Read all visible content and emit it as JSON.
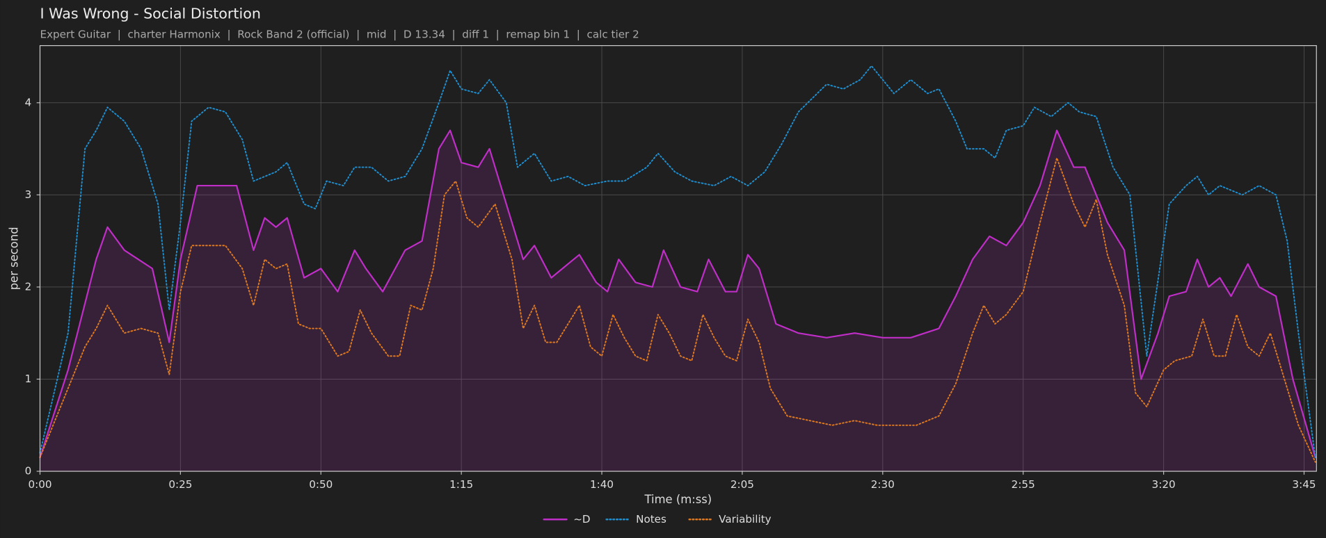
{
  "chart_data": {
    "type": "line",
    "title": "I Was Wrong - Social Distortion",
    "subtitle": "Expert Guitar  |  charter Harmonix  |  Rock Band 2 (official)  |  mid  |  D 13.34  |  diff 1  |  remap bin 1  |  calc tier 2",
    "xlabel": "Time (m:ss)",
    "ylabel": "per second",
    "xlim": [
      0,
      227.2
    ],
    "ylim": [
      0,
      4.62
    ],
    "xticks": [
      {
        "value": 0,
        "label": "0:00"
      },
      {
        "value": 25,
        "label": "0:25"
      },
      {
        "value": 50,
        "label": "0:50"
      },
      {
        "value": 75,
        "label": "1:15"
      },
      {
        "value": 100,
        "label": "1:40"
      },
      {
        "value": 125,
        "label": "2:05"
      },
      {
        "value": 150,
        "label": "2:30"
      },
      {
        "value": 175,
        "label": "2:55"
      },
      {
        "value": 200,
        "label": "3:20"
      },
      {
        "value": 225,
        "label": "3:45"
      }
    ],
    "yticks": [
      0,
      1,
      2,
      3,
      4
    ],
    "grid": true,
    "legend": "bottom",
    "series": [
      {
        "name": "~D",
        "color": "#c02ec8",
        "linestyle": "solid",
        "fill": true,
        "x": [
          0,
          5,
          10,
          12,
          15,
          20,
          23,
          25,
          28,
          35,
          38,
          40,
          42,
          44,
          47,
          50,
          53,
          56,
          58,
          61,
          65,
          68,
          71,
          73,
          75,
          78,
          80,
          84,
          86,
          88,
          91,
          94,
          96,
          99,
          101,
          103,
          106,
          109,
          111,
          114,
          117,
          119,
          122,
          124,
          126,
          128,
          131,
          135,
          140,
          145,
          150,
          155,
          160,
          163,
          166,
          169,
          172,
          175,
          178,
          181,
          184,
          186,
          190,
          193,
          196,
          199,
          201,
          204,
          206,
          208,
          210,
          212,
          215,
          217,
          220,
          223,
          227
        ],
        "values": [
          0.15,
          1.1,
          2.3,
          2.65,
          2.4,
          2.2,
          1.4,
          2.3,
          3.1,
          3.1,
          2.4,
          2.75,
          2.65,
          2.75,
          2.1,
          2.2,
          1.95,
          2.4,
          2.2,
          1.95,
          2.4,
          2.5,
          3.5,
          3.7,
          3.35,
          3.3,
          3.5,
          2.7,
          2.3,
          2.45,
          2.1,
          2.25,
          2.35,
          2.05,
          1.95,
          2.3,
          2.05,
          2.0,
          2.4,
          2.0,
          1.95,
          2.3,
          1.95,
          1.95,
          2.35,
          2.2,
          1.6,
          1.5,
          1.45,
          1.5,
          1.45,
          1.45,
          1.55,
          1.9,
          2.3,
          2.55,
          2.45,
          2.7,
          3.1,
          3.7,
          3.3,
          3.3,
          2.7,
          2.4,
          1.0,
          1.5,
          1.9,
          1.95,
          2.3,
          2.0,
          2.1,
          1.9,
          2.25,
          2.0,
          1.9,
          1.0,
          0.15
        ]
      },
      {
        "name": "Notes",
        "color": "#1f8fd0",
        "linestyle": "dotted",
        "fill": false,
        "x": [
          0,
          5,
          8,
          10,
          12,
          15,
          18,
          21,
          23,
          25,
          27,
          30,
          33,
          36,
          38,
          42,
          44,
          47,
          49,
          51,
          54,
          56,
          59,
          62,
          65,
          68,
          71,
          73,
          75,
          78,
          80,
          83,
          85,
          88,
          91,
          94,
          97,
          101,
          104,
          108,
          110,
          113,
          116,
          120,
          123,
          126,
          129,
          132,
          135,
          140,
          143,
          146,
          148,
          152,
          155,
          158,
          160,
          163,
          165,
          168,
          170,
          172,
          175,
          177,
          180,
          183,
          185,
          188,
          191,
          194,
          197,
          201,
          204,
          206,
          208,
          210,
          214,
          217,
          220,
          222,
          224,
          227
        ],
        "values": [
          0.2,
          1.5,
          3.5,
          3.7,
          3.95,
          3.8,
          3.5,
          2.9,
          1.75,
          2.7,
          3.8,
          3.95,
          3.9,
          3.6,
          3.15,
          3.25,
          3.35,
          2.9,
          2.85,
          3.15,
          3.1,
          3.3,
          3.3,
          3.15,
          3.2,
          3.5,
          4.0,
          4.35,
          4.15,
          4.1,
          4.25,
          4.0,
          3.3,
          3.45,
          3.15,
          3.2,
          3.1,
          3.15,
          3.15,
          3.3,
          3.45,
          3.25,
          3.15,
          3.1,
          3.2,
          3.1,
          3.25,
          3.55,
          3.9,
          4.2,
          4.15,
          4.25,
          4.4,
          4.1,
          4.25,
          4.1,
          4.15,
          3.8,
          3.5,
          3.5,
          3.4,
          3.7,
          3.75,
          3.95,
          3.85,
          4.0,
          3.9,
          3.85,
          3.3,
          3.0,
          1.25,
          2.9,
          3.1,
          3.2,
          3.0,
          3.1,
          3.0,
          3.1,
          3.0,
          2.5,
          1.5,
          0.15
        ]
      },
      {
        "name": "Variability",
        "color": "#e07a1f",
        "linestyle": "dotted",
        "fill": false,
        "x": [
          0,
          5,
          8,
          10,
          12,
          15,
          18,
          21,
          23,
          25,
          27,
          30,
          33,
          36,
          38,
          40,
          42,
          44,
          46,
          48,
          50,
          53,
          55,
          57,
          59,
          62,
          64,
          66,
          68,
          70,
          72,
          74,
          76,
          78,
          81,
          84,
          86,
          88,
          90,
          92,
          94,
          96,
          98,
          100,
          102,
          104,
          106,
          108,
          110,
          112,
          114,
          116,
          118,
          120,
          122,
          124,
          126,
          128,
          130,
          133,
          137,
          141,
          145,
          149,
          153,
          156,
          160,
          163,
          166,
          168,
          170,
          172,
          175,
          178,
          181,
          184,
          186,
          188,
          190,
          193,
          195,
          197,
          200,
          202,
          205,
          207,
          209,
          211,
          213,
          215,
          217,
          219,
          221,
          224,
          227
        ],
        "values": [
          0.15,
          0.9,
          1.35,
          1.55,
          1.8,
          1.5,
          1.55,
          1.5,
          1.05,
          1.95,
          2.45,
          2.45,
          2.45,
          2.2,
          1.8,
          2.3,
          2.2,
          2.25,
          1.6,
          1.55,
          1.55,
          1.25,
          1.3,
          1.75,
          1.5,
          1.25,
          1.25,
          1.8,
          1.75,
          2.2,
          3.0,
          3.15,
          2.75,
          2.65,
          2.9,
          2.3,
          1.55,
          1.8,
          1.4,
          1.4,
          1.6,
          1.8,
          1.35,
          1.25,
          1.7,
          1.45,
          1.25,
          1.2,
          1.7,
          1.5,
          1.25,
          1.2,
          1.7,
          1.45,
          1.25,
          1.2,
          1.65,
          1.4,
          0.9,
          0.6,
          0.55,
          0.5,
          0.55,
          0.5,
          0.5,
          0.5,
          0.6,
          0.95,
          1.5,
          1.8,
          1.6,
          1.7,
          1.95,
          2.7,
          3.4,
          2.9,
          2.65,
          2.95,
          2.35,
          1.8,
          0.85,
          0.7,
          1.1,
          1.2,
          1.25,
          1.65,
          1.25,
          1.25,
          1.7,
          1.35,
          1.25,
          1.5,
          1.1,
          0.5,
          0.1
        ]
      }
    ]
  }
}
